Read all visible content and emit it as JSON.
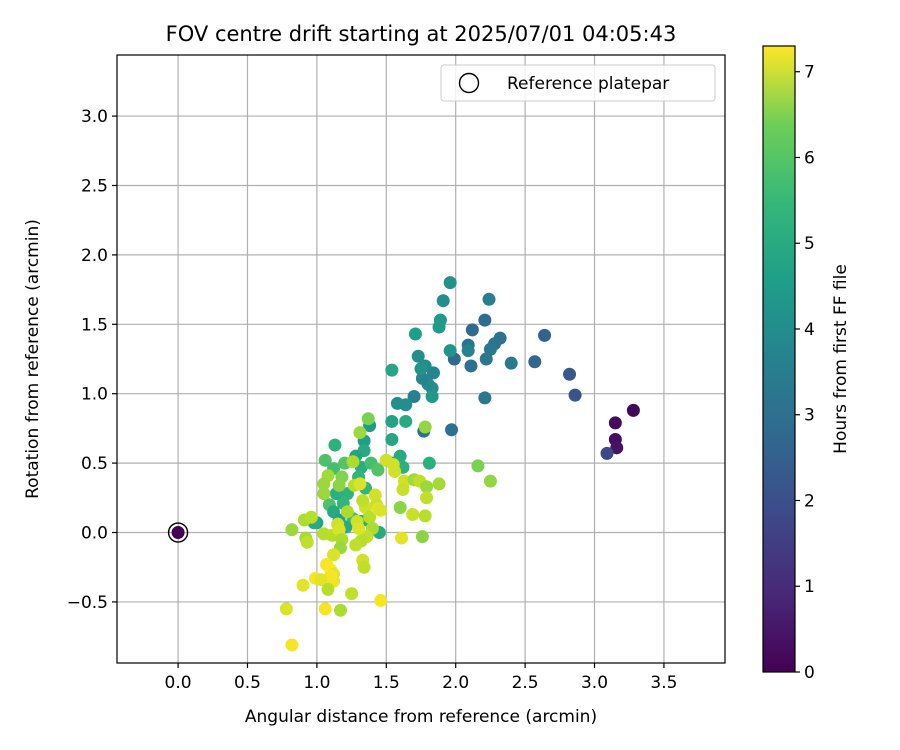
{
  "chart_data": {
    "type": "scatter",
    "title": "FOV centre drift starting at 2025/07/01 04:05:43",
    "xlabel": "Angular distance from reference (arcmin)",
    "ylabel": "Rotation from reference (arcmin)",
    "xlim": [
      -0.44,
      3.94
    ],
    "ylim": [
      -0.94,
      3.44
    ],
    "xticks": [
      "0.0",
      "0.5",
      "1.0",
      "1.5",
      "2.0",
      "2.5",
      "3.0",
      "3.5"
    ],
    "yticks": [
      "−0.5",
      "0.0",
      "0.5",
      "1.0",
      "1.5",
      "2.0",
      "2.5",
      "3.0"
    ],
    "grid": true,
    "legend": {
      "position": "top-right",
      "entries": [
        {
          "label": "Reference platepar",
          "marker": "open-circle"
        }
      ]
    },
    "colorbar": {
      "label": "Hours from first FF file",
      "min": 0,
      "max": 7.3,
      "ticks": [
        "0",
        "1",
        "2",
        "3",
        "4",
        "5",
        "6",
        "7"
      ],
      "colormap": "viridis"
    },
    "reference_point": {
      "x": 0.0,
      "y": 0.0,
      "hours": 0.0
    },
    "points": [
      {
        "x": 3.28,
        "y": 0.88,
        "hours": 0.1
      },
      {
        "x": 3.15,
        "y": 0.79,
        "hours": 0.2
      },
      {
        "x": 3.15,
        "y": 0.67,
        "hours": 0.3
      },
      {
        "x": 3.16,
        "y": 0.61,
        "hours": 0.4
      },
      {
        "x": 3.09,
        "y": 0.57,
        "hours": 1.6
      },
      {
        "x": 2.86,
        "y": 0.99,
        "hours": 1.9
      },
      {
        "x": 2.82,
        "y": 1.14,
        "hours": 2.0
      },
      {
        "x": 2.64,
        "y": 1.42,
        "hours": 2.3
      },
      {
        "x": 2.57,
        "y": 1.23,
        "hours": 2.4
      },
      {
        "x": 2.4,
        "y": 1.22,
        "hours": 3.0
      },
      {
        "x": 2.32,
        "y": 1.4,
        "hours": 2.7
      },
      {
        "x": 2.28,
        "y": 1.36,
        "hours": 2.8
      },
      {
        "x": 2.25,
        "y": 1.32,
        "hours": 2.9
      },
      {
        "x": 2.24,
        "y": 1.68,
        "hours": 3.1
      },
      {
        "x": 2.21,
        "y": 1.53,
        "hours": 2.6
      },
      {
        "x": 2.22,
        "y": 1.25,
        "hours": 2.9
      },
      {
        "x": 2.21,
        "y": 0.97,
        "hours": 2.9
      },
      {
        "x": 2.12,
        "y": 1.46,
        "hours": 2.5
      },
      {
        "x": 2.11,
        "y": 1.2,
        "hours": 2.7
      },
      {
        "x": 2.09,
        "y": 1.35,
        "hours": 2.8
      },
      {
        "x": 2.09,
        "y": 1.31,
        "hours": 3.2
      },
      {
        "x": 1.99,
        "y": 1.25,
        "hours": 2.5
      },
      {
        "x": 1.97,
        "y": 0.74,
        "hours": 2.7
      },
      {
        "x": 1.96,
        "y": 1.8,
        "hours": 3.7
      },
      {
        "x": 1.96,
        "y": 1.31,
        "hours": 3.8
      },
      {
        "x": 1.91,
        "y": 1.67,
        "hours": 3.6
      },
      {
        "x": 1.89,
        "y": 1.53,
        "hours": 3.9
      },
      {
        "x": 1.88,
        "y": 1.48,
        "hours": 4.0
      },
      {
        "x": 1.84,
        "y": 1.15,
        "hours": 3.3
      },
      {
        "x": 1.83,
        "y": 1.04,
        "hours": 3.6
      },
      {
        "x": 1.8,
        "y": 1.07,
        "hours": 3.5
      },
      {
        "x": 1.78,
        "y": 1.2,
        "hours": 3.5
      },
      {
        "x": 1.76,
        "y": 1.11,
        "hours": 3.3
      },
      {
        "x": 1.75,
        "y": 1.18,
        "hours": 3.7
      },
      {
        "x": 1.73,
        "y": 1.27,
        "hours": 3.6
      },
      {
        "x": 1.71,
        "y": 1.43,
        "hours": 4.1
      },
      {
        "x": 1.7,
        "y": 0.98,
        "hours": 3.2
      },
      {
        "x": 1.77,
        "y": 0.73,
        "hours": 2.8
      },
      {
        "x": 1.64,
        "y": 0.8,
        "hours": 4.4
      },
      {
        "x": 1.64,
        "y": 0.92,
        "hours": 3.6
      },
      {
        "x": 1.58,
        "y": 0.93,
        "hours": 3.6
      },
      {
        "x": 1.54,
        "y": 1.17,
        "hours": 4.3
      },
      {
        "x": 1.54,
        "y": 0.8,
        "hours": 4.2
      },
      {
        "x": 1.54,
        "y": 0.67,
        "hours": 4.3
      },
      {
        "x": 1.6,
        "y": 0.55,
        "hours": 4.4
      },
      {
        "x": 1.5,
        "y": 0.52,
        "hours": 3.9
      },
      {
        "x": 1.55,
        "y": 0.5,
        "hours": 4.3
      },
      {
        "x": 1.62,
        "y": 0.47,
        "hours": 4.6
      },
      {
        "x": 1.81,
        "y": 0.5,
        "hours": 4.6
      },
      {
        "x": 1.38,
        "y": 0.77,
        "hours": 4.0
      },
      {
        "x": 1.34,
        "y": 0.66,
        "hours": 4.1
      },
      {
        "x": 1.34,
        "y": 0.59,
        "hours": 4.4
      },
      {
        "x": 1.28,
        "y": 0.55,
        "hours": 4.2
      },
      {
        "x": 1.32,
        "y": 0.47,
        "hours": 4.5
      },
      {
        "x": 1.13,
        "y": 0.63,
        "hours": 4.6
      },
      {
        "x": 1.06,
        "y": 0.52,
        "hours": 5.2
      },
      {
        "x": 1.12,
        "y": 0.46,
        "hours": 5.1
      },
      {
        "x": 1.2,
        "y": 0.5,
        "hours": 5.3
      },
      {
        "x": 1.3,
        "y": 0.4,
        "hours": 4.8
      },
      {
        "x": 1.35,
        "y": 0.32,
        "hours": 4.8
      },
      {
        "x": 1.22,
        "y": 0.28,
        "hours": 4.7
      },
      {
        "x": 1.19,
        "y": 0.21,
        "hours": 4.8
      },
      {
        "x": 1.14,
        "y": 0.28,
        "hours": 4.6
      },
      {
        "x": 1.09,
        "y": 0.2,
        "hours": 5.2
      },
      {
        "x": 1.0,
        "y": 0.07,
        "hours": 4.2
      },
      {
        "x": 0.98,
        "y": 0.07,
        "hours": 4.5
      },
      {
        "x": 1.12,
        "y": 0.15,
        "hours": 4.4
      },
      {
        "x": 1.16,
        "y": 0.09,
        "hours": 4.2
      },
      {
        "x": 1.26,
        "y": 0.1,
        "hours": 5.0
      },
      {
        "x": 1.31,
        "y": 0.08,
        "hours": 4.1
      },
      {
        "x": 1.36,
        "y": 0.09,
        "hours": 4.4
      },
      {
        "x": 1.45,
        "y": 0.0,
        "hours": 4.4
      },
      {
        "x": 1.21,
        "y": 0.04,
        "hours": 4.4
      },
      {
        "x": 1.39,
        "y": 0.5,
        "hours": 5.1
      },
      {
        "x": 1.44,
        "y": 0.45,
        "hours": 5.3
      },
      {
        "x": 1.37,
        "y": 0.82,
        "hours": 5.8
      },
      {
        "x": 1.31,
        "y": 0.72,
        "hours": 6.2
      },
      {
        "x": 1.26,
        "y": 0.51,
        "hours": 6.4
      },
      {
        "x": 1.18,
        "y": 0.4,
        "hours": 5.9
      },
      {
        "x": 1.16,
        "y": 0.34,
        "hours": 6.0
      },
      {
        "x": 1.08,
        "y": 0.41,
        "hours": 6.3
      },
      {
        "x": 1.05,
        "y": 0.35,
        "hours": 6.2
      },
      {
        "x": 1.05,
        "y": 0.28,
        "hours": 6.2
      },
      {
        "x": 0.91,
        "y": 0.09,
        "hours": 6.4
      },
      {
        "x": 0.96,
        "y": 0.11,
        "hours": 6.5
      },
      {
        "x": 0.82,
        "y": 0.02,
        "hours": 6.2
      },
      {
        "x": 0.92,
        "y": -0.04,
        "hours": 6.3
      },
      {
        "x": 0.93,
        "y": -0.07,
        "hours": 6.6
      },
      {
        "x": 1.05,
        "y": -0.01,
        "hours": 6.5
      },
      {
        "x": 1.11,
        "y": -0.02,
        "hours": 6.5
      },
      {
        "x": 1.15,
        "y": 0.06,
        "hours": 6.8
      },
      {
        "x": 1.22,
        "y": 0.15,
        "hours": 6.4
      },
      {
        "x": 1.27,
        "y": 0.34,
        "hours": 6.5
      },
      {
        "x": 1.31,
        "y": 0.35,
        "hours": 6.9
      },
      {
        "x": 1.35,
        "y": 0.18,
        "hours": 6.8
      },
      {
        "x": 1.33,
        "y": 0.23,
        "hours": 6.6
      },
      {
        "x": 1.38,
        "y": 0.11,
        "hours": 6.5
      },
      {
        "x": 1.42,
        "y": 0.27,
        "hours": 6.8
      },
      {
        "x": 1.43,
        "y": 0.2,
        "hours": 6.7
      },
      {
        "x": 1.44,
        "y": 0.17,
        "hours": 7.0
      },
      {
        "x": 1.4,
        "y": 0.03,
        "hours": 6.4
      },
      {
        "x": 1.36,
        "y": -0.03,
        "hours": 6.6
      },
      {
        "x": 1.32,
        "y": -0.06,
        "hours": 6.5
      },
      {
        "x": 1.28,
        "y": -0.09,
        "hours": 6.6
      },
      {
        "x": 1.29,
        "y": 0.08,
        "hours": 6.8
      },
      {
        "x": 1.3,
        "y": 0.03,
        "hours": 6.9
      },
      {
        "x": 1.16,
        "y": 0.02,
        "hours": 6.9
      },
      {
        "x": 1.18,
        "y": -0.05,
        "hours": 6.4
      },
      {
        "x": 1.17,
        "y": -0.11,
        "hours": 6.2
      },
      {
        "x": 1.12,
        "y": -0.16,
        "hours": 6.9
      },
      {
        "x": 1.33,
        "y": -0.2,
        "hours": 6.8
      },
      {
        "x": 1.34,
        "y": -0.25,
        "hours": 6.6
      },
      {
        "x": 1.07,
        "y": -0.23,
        "hours": 7.2
      },
      {
        "x": 1.1,
        "y": -0.27,
        "hours": 7.3
      },
      {
        "x": 1.12,
        "y": -0.3,
        "hours": 7.0
      },
      {
        "x": 1.12,
        "y": -0.35,
        "hours": 7.1
      },
      {
        "x": 1.1,
        "y": -0.31,
        "hours": 7.2
      },
      {
        "x": 0.99,
        "y": -0.33,
        "hours": 7.2
      },
      {
        "x": 1.03,
        "y": -0.34,
        "hours": 7.0
      },
      {
        "x": 0.9,
        "y": -0.38,
        "hours": 7.0
      },
      {
        "x": 1.08,
        "y": -0.41,
        "hours": 6.5
      },
      {
        "x": 1.25,
        "y": -0.44,
        "hours": 6.6
      },
      {
        "x": 1.46,
        "y": -0.49,
        "hours": 7.2
      },
      {
        "x": 0.78,
        "y": -0.55,
        "hours": 6.9
      },
      {
        "x": 1.06,
        "y": -0.55,
        "hours": 7.2
      },
      {
        "x": 1.17,
        "y": -0.56,
        "hours": 6.4
      },
      {
        "x": 0.82,
        "y": -0.81,
        "hours": 7.2
      },
      {
        "x": 1.46,
        "y": 0.16,
        "hours": 6.9
      },
      {
        "x": 1.5,
        "y": 0.52,
        "hours": 6.8
      },
      {
        "x": 1.56,
        "y": 0.44,
        "hours": 6.8
      },
      {
        "x": 1.55,
        "y": 0.49,
        "hours": 6.8
      },
      {
        "x": 1.63,
        "y": 0.37,
        "hours": 6.8
      },
      {
        "x": 1.62,
        "y": 0.31,
        "hours": 6.7
      },
      {
        "x": 1.6,
        "y": 0.18,
        "hours": 6.0
      },
      {
        "x": 1.61,
        "y": -0.04,
        "hours": 7.0
      },
      {
        "x": 1.69,
        "y": 0.13,
        "hours": 6.7
      },
      {
        "x": 1.7,
        "y": 0.38,
        "hours": 6.3
      },
      {
        "x": 1.74,
        "y": 0.37,
        "hours": 6.6
      },
      {
        "x": 1.79,
        "y": 0.33,
        "hours": 6.2
      },
      {
        "x": 1.78,
        "y": 0.12,
        "hours": 6.5
      },
      {
        "x": 1.79,
        "y": 0.25,
        "hours": 6.6
      },
      {
        "x": 1.76,
        "y": -0.03,
        "hours": 6.0
      },
      {
        "x": 1.88,
        "y": 0.35,
        "hours": 6.3
      },
      {
        "x": 1.78,
        "y": 0.76,
        "hours": 6.1
      },
      {
        "x": 2.16,
        "y": 0.48,
        "hours": 5.8
      },
      {
        "x": 2.25,
        "y": 0.37,
        "hours": 6.1
      },
      {
        "x": 1.83,
        "y": 0.98,
        "hours": 3.9
      }
    ]
  }
}
